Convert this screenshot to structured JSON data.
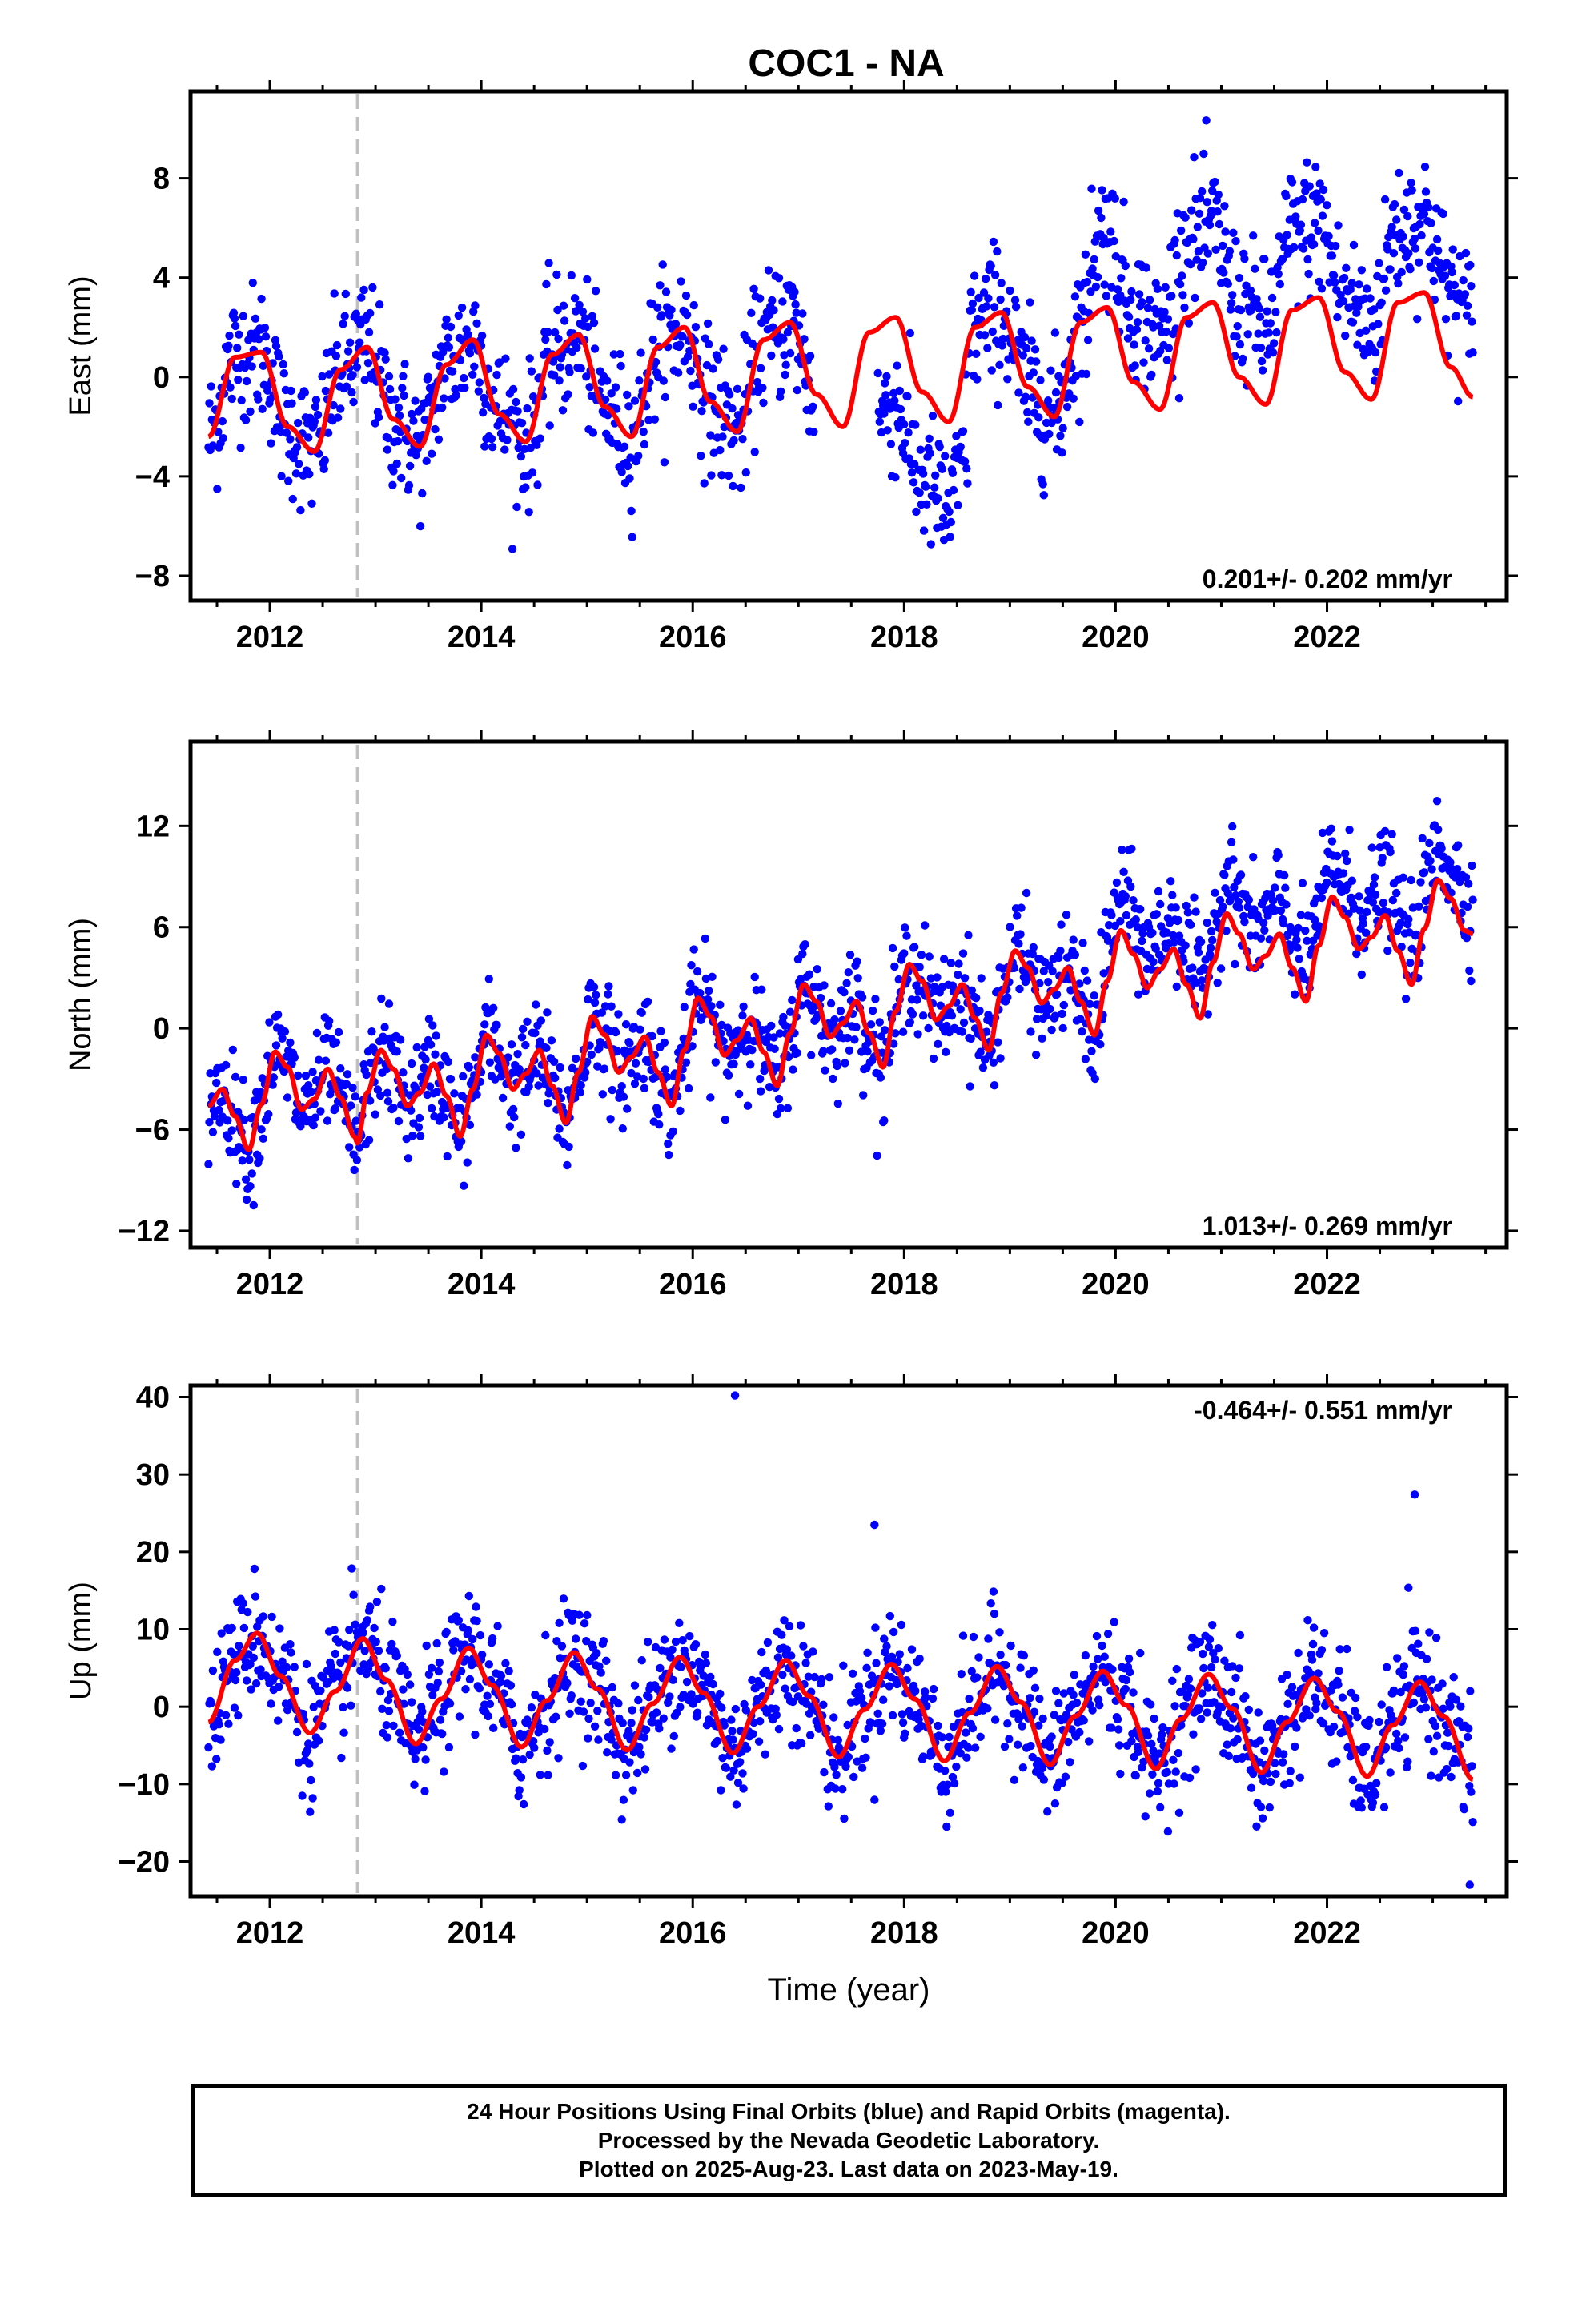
{
  "figure": {
    "title": "COC1 - NA",
    "footer_lines": [
      "24 Hour Positions Using Final Orbits (blue) and Rapid Orbits (magenta).",
      "Processed by the Nevada Geodetic Laboratory.",
      "Plotted on 2025-Aug-23. Last data on 2023-May-19."
    ],
    "colors": {
      "final_orbits": "#0000ff",
      "model_fit": "#ff0000",
      "marker_line": "#c0c0c0",
      "axes": "#000000"
    }
  },
  "chart_data": [
    {
      "type": "scatter",
      "panel": "east",
      "ylabel": "East (mm)",
      "xlabel": "",
      "xlim": [
        2011.25,
        2023.7
      ],
      "ylim": [
        -9,
        11.5
      ],
      "xticks": [
        2012,
        2014,
        2016,
        2018,
        2020,
        2022
      ],
      "yticks": [
        -8,
        -4,
        0,
        4,
        8
      ],
      "rate_annotation": "0.201+/- 0.202 mm/yr",
      "annotation_position": "bottom-right",
      "reference_line_x": 2012.83,
      "data_range": [
        2011.42,
        2023.38
      ],
      "data_gap": [
        2017.15,
        2017.75
      ],
      "series": [
        {
          "kind": "final_orbits_points",
          "color": "#0000ff",
          "approx_daily_model": {
            "offset": -0.6,
            "rate_mm_yr": 0.2,
            "annual_amplitude": 2.3,
            "annual_peak_year_fraction": 0.7,
            "scatter_mm": 1.4,
            "steps": [
              {
                "start": 2017.75,
                "end": 2018.6,
                "offset": -3.5
              },
              {
                "start": 2019.75,
                "end": 2023.4,
                "offset": 3.0
              }
            ]
          }
        },
        {
          "kind": "model_fit",
          "color": "#ff0000",
          "name": "",
          "knots_x": [
            2011.42,
            2011.67,
            2011.92,
            2012.17,
            2012.42,
            2012.67,
            2012.92,
            2013.17,
            2013.42,
            2013.67,
            2013.92,
            2014.17,
            2014.42,
            2014.67,
            2014.92,
            2015.17,
            2015.42,
            2015.67,
            2015.92,
            2016.17,
            2016.42,
            2016.67,
            2016.92,
            2017.17,
            2017.42,
            2017.67,
            2017.92,
            2018.17,
            2018.42,
            2018.67,
            2018.92,
            2019.17,
            2019.42,
            2019.67,
            2019.92,
            2020.17,
            2020.42,
            2020.67,
            2020.92,
            2021.17,
            2021.42,
            2021.67,
            2021.92,
            2022.17,
            2022.42,
            2022.67,
            2022.92,
            2023.17,
            2023.38
          ],
          "knots_y": [
            -2.4,
            0.8,
            1.0,
            -2.0,
            -3.0,
            0.3,
            1.2,
            -1.7,
            -2.8,
            0.5,
            1.5,
            -1.5,
            -2.6,
            0.9,
            1.7,
            -1.2,
            -2.4,
            1.2,
            2.0,
            -1.0,
            -2.2,
            1.5,
            2.2,
            -0.7,
            -2.0,
            1.8,
            2.4,
            -0.6,
            -1.8,
            2.0,
            2.6,
            -0.4,
            -1.6,
            2.2,
            2.8,
            -0.2,
            -1.3,
            2.4,
            3.0,
            0.0,
            -1.1,
            2.7,
            3.2,
            0.2,
            -0.9,
            3.0,
            3.4,
            0.4,
            -0.8
          ]
        }
      ]
    },
    {
      "type": "scatter",
      "panel": "north",
      "ylabel": "North (mm)",
      "xlabel": "",
      "xlim": [
        2011.25,
        2023.7
      ],
      "ylim": [
        -13,
        17
      ],
      "xticks": [
        2012,
        2014,
        2016,
        2018,
        2020,
        2022
      ],
      "yticks": [
        -12,
        -6,
        0,
        6,
        12
      ],
      "rate_annotation": "1.013+/- 0.269 mm/yr",
      "annotation_position": "bottom-right",
      "reference_line_x": 2012.83,
      "data_range": [
        2011.42,
        2023.38
      ],
      "series": [
        {
          "kind": "final_orbits_points",
          "color": "#0000ff",
          "approx_daily_model": {
            "offset": -5.0,
            "rate_mm_yr": 1.0,
            "annual_amplitude": 2.0,
            "semiannual_amplitude": 1.3,
            "scatter_mm": 1.6,
            "steps": [
              {
                "start": 2019.9,
                "end": 2023.4,
                "offset": 2.0
              }
            ]
          }
        },
        {
          "kind": "model_fit",
          "color": "#ff0000",
          "name": "",
          "knots_x": [
            2011.42,
            2011.55,
            2011.67,
            2011.8,
            2011.92,
            2012.05,
            2012.17,
            2012.3,
            2012.42,
            2012.55,
            2012.67,
            2012.8,
            2012.83,
            2012.92,
            2013.05,
            2013.17,
            2013.3,
            2013.42,
            2013.55,
            2013.67,
            2013.8,
            2013.92,
            2014.05,
            2014.17,
            2014.3,
            2014.42,
            2014.55,
            2014.67,
            2014.8,
            2014.92,
            2015.05,
            2015.17,
            2015.3,
            2015.42,
            2015.55,
            2015.67,
            2015.8,
            2015.92,
            2016.05,
            2016.17,
            2016.3,
            2016.42,
            2016.55,
            2016.67,
            2016.8,
            2016.92,
            2017.05,
            2017.17,
            2017.3,
            2017.42,
            2017.55,
            2017.67,
            2017.8,
            2017.92,
            2018.05,
            2018.17,
            2018.3,
            2018.42,
            2018.55,
            2018.67,
            2018.8,
            2018.92,
            2019.05,
            2019.17,
            2019.3,
            2019.42,
            2019.55,
            2019.67,
            2019.8,
            2019.92,
            2020.05,
            2020.17,
            2020.3,
            2020.42,
            2020.55,
            2020.67,
            2020.8,
            2020.92,
            2021.05,
            2021.17,
            2021.3,
            2021.42,
            2021.55,
            2021.67,
            2021.8,
            2021.92,
            2022.05,
            2022.17,
            2022.3,
            2022.42,
            2022.55,
            2022.67,
            2022.8,
            2022.92,
            2023.05,
            2023.17,
            2023.3,
            2023.38
          ],
          "knots_y": [
            -4.6,
            -3.6,
            -5.2,
            -7.2,
            -4.5,
            -1.4,
            -2.3,
            -4.8,
            -4.2,
            -2.4,
            -4.1,
            -6.4,
            -6.8,
            -3.8,
            -1.3,
            -2.4,
            -4.6,
            -3.8,
            -2.1,
            -4.0,
            -6.4,
            -3.6,
            -0.4,
            -1.5,
            -3.6,
            -2.7,
            -1.3,
            -3.4,
            -5.6,
            -2.6,
            0.7,
            -0.4,
            -2.6,
            -1.7,
            -0.5,
            -2.6,
            -4.6,
            -1.3,
            1.8,
            0.7,
            -1.6,
            -0.7,
            0.6,
            -1.4,
            -3.4,
            -0.3,
            2.6,
            1.6,
            -0.5,
            0.3,
            1.6,
            -0.3,
            -2.3,
            1.0,
            3.8,
            2.8,
            0.5,
            1.3,
            2.6,
            0.6,
            -1.3,
            2.1,
            4.6,
            3.6,
            1.5,
            2.3,
            3.6,
            1.6,
            -0.4,
            2.8,
            5.8,
            4.4,
            2.4,
            3.5,
            4.7,
            2.6,
            0.6,
            3.9,
            6.8,
            5.6,
            3.5,
            4.3,
            5.6,
            3.6,
            1.6,
            4.9,
            7.8,
            6.6,
            4.7,
            5.4,
            6.7,
            4.6,
            2.6,
            5.9,
            8.8,
            7.7,
            5.8,
            5.6
          ]
        }
      ]
    },
    {
      "type": "scatter",
      "panel": "up",
      "ylabel": "Up (mm)",
      "xlabel": "Time (year)",
      "xlim": [
        2011.25,
        2023.7
      ],
      "ylim": [
        -24.5,
        41.5
      ],
      "xticks": [
        2012,
        2014,
        2016,
        2018,
        2020,
        2022
      ],
      "yticks": [
        -20,
        -10,
        0,
        10,
        20,
        30,
        40
      ],
      "rate_annotation": "-0.464+/- 0.551 mm/yr",
      "annotation_position": "top-right",
      "reference_line_x": 2012.83,
      "data_range": [
        2011.42,
        2023.38
      ],
      "outliers": [
        [
          2016.4,
          40.2
        ],
        [
          2017.72,
          23.5
        ],
        [
          2022.83,
          27.4
        ],
        [
          2023.35,
          -23.0
        ]
      ],
      "series": [
        {
          "kind": "final_orbits_points",
          "color": "#0000ff",
          "approx_daily_model": {
            "offset": 1.0,
            "rate_mm_yr": -0.46,
            "annual_amplitude": 6.5,
            "annual_peak_year_fraction": 0.88,
            "scatter_mm": 4.0
          }
        },
        {
          "kind": "model_fit",
          "color": "#ff0000",
          "name": "",
          "knots_x": [
            2011.42,
            2011.67,
            2011.88,
            2012.1,
            2012.38,
            2012.62,
            2012.88,
            2013.1,
            2013.38,
            2013.62,
            2013.88,
            2014.1,
            2014.38,
            2014.62,
            2014.88,
            2015.1,
            2015.38,
            2015.62,
            2015.88,
            2016.1,
            2016.38,
            2016.62,
            2016.88,
            2017.1,
            2017.38,
            2017.62,
            2017.88,
            2018.1,
            2018.38,
            2018.62,
            2018.88,
            2019.1,
            2019.38,
            2019.62,
            2019.88,
            2020.1,
            2020.38,
            2020.62,
            2020.88,
            2021.1,
            2021.38,
            2021.62,
            2021.88,
            2022.1,
            2022.38,
            2022.62,
            2022.88,
            2023.1,
            2023.38
          ],
          "knots_y": [
            -2.0,
            6.0,
            9.5,
            4.0,
            -3.4,
            2.0,
            8.8,
            3.5,
            -4.8,
            1.0,
            7.6,
            2.8,
            -5.2,
            0.8,
            7.0,
            2.3,
            -5.6,
            0.4,
            6.4,
            1.8,
            -6.0,
            0.0,
            6.0,
            1.4,
            -6.5,
            -0.4,
            5.5,
            1.0,
            -7.0,
            -0.8,
            5.2,
            0.6,
            -7.5,
            -1.2,
            4.6,
            0.2,
            -8.0,
            -1.6,
            4.2,
            -0.2,
            -8.5,
            -2.0,
            3.7,
            -0.6,
            -9.0,
            -2.4,
            3.2,
            -1.2,
            -9.4
          ]
        }
      ]
    }
  ]
}
